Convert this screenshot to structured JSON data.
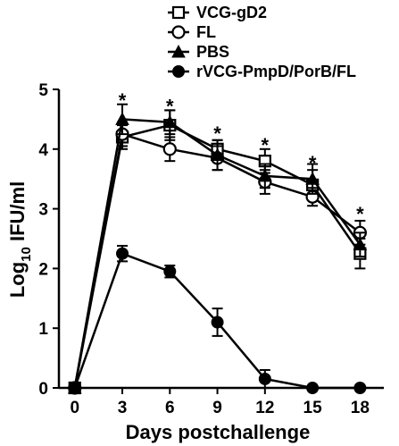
{
  "chart_data": {
    "type": "line",
    "xlabel": "Days postchallenge",
    "ylabel_main": "Log",
    "ylabel_sub": "10",
    "ylabel_rest": " IFU/ml",
    "x": [
      0,
      3,
      6,
      9,
      12,
      15,
      18
    ],
    "xticks": [
      "0",
      "3",
      "6",
      "9",
      "12",
      "15",
      "18"
    ],
    "yticks": [
      "0",
      "1",
      "2",
      "3",
      "4",
      "5"
    ],
    "xlim": [
      -1,
      19.5
    ],
    "ylim": [
      0,
      5
    ],
    "grid": false,
    "legend_position": "top-right",
    "series": [
      {
        "name": "VCG-gD2",
        "marker": "open-square",
        "values": [
          0,
          4.2,
          4.4,
          4.0,
          3.8,
          3.4,
          2.25
        ],
        "errors": [
          0,
          0.2,
          0.25,
          0.15,
          0.2,
          0.25,
          0.25
        ]
      },
      {
        "name": "FL",
        "marker": "open-circle",
        "values": [
          0,
          4.25,
          4.0,
          3.85,
          3.45,
          3.2,
          2.6
        ],
        "errors": [
          0,
          0.2,
          0.2,
          0.2,
          0.2,
          0.15,
          0.2
        ]
      },
      {
        "name": "PBS",
        "marker": "filled-triangle",
        "values": [
          0,
          4.5,
          4.45,
          3.9,
          3.55,
          3.5,
          2.4
        ],
        "errors": [
          0,
          0.25,
          0.2,
          0.25,
          0.2,
          0.25,
          0.2
        ]
      },
      {
        "name": "rVCG-PmpD/PorB/FL",
        "marker": "filled-circle",
        "values": [
          0,
          2.25,
          1.95,
          1.1,
          0.15,
          0,
          0
        ],
        "errors": [
          0,
          0.13,
          0.1,
          0.23,
          0.15,
          0,
          0
        ]
      }
    ],
    "annotations": [
      {
        "x": 3,
        "y": 4.85,
        "text": "*"
      },
      {
        "x": 6,
        "y": 4.75,
        "text": "*"
      },
      {
        "x": 9,
        "y": 4.3,
        "text": "*"
      },
      {
        "x": 12,
        "y": 4.1,
        "text": "*"
      },
      {
        "x": 15,
        "y": 3.8,
        "text": "*"
      },
      {
        "x": 18,
        "y": 2.95,
        "text": "*"
      }
    ]
  }
}
